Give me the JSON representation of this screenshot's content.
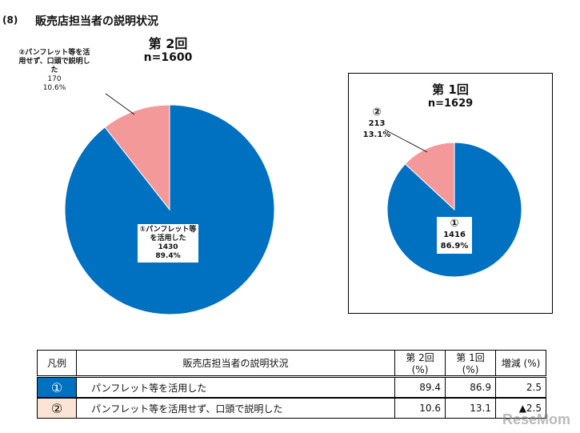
{
  "section": {
    "number": "(8)",
    "title": "販売店担当者の説明状況"
  },
  "colors": {
    "slice1": "#0070C0",
    "slice2": "#F4999A",
    "legend_row1": "#0070C0",
    "legend_row2": "#FBE4D5"
  },
  "chart_data": [
    {
      "type": "pie",
      "title": "第 2回",
      "n_label": "n=1600",
      "slices": [
        {
          "marker": "①",
          "label": "①パンフレット等を活用した",
          "count": "1430",
          "percent": "89.4%",
          "value": 89.4
        },
        {
          "marker": "②",
          "label": "②パンフレット等を活用せず、口頭で説明した",
          "count": "170",
          "percent": "10.6%",
          "value": 10.6
        }
      ]
    },
    {
      "type": "pie",
      "title": "第 1回",
      "n_label": "n=1629",
      "slices": [
        {
          "marker": "①",
          "label": "①",
          "count": "1416",
          "percent": "86.9%",
          "value": 86.9
        },
        {
          "marker": "②",
          "label": "②",
          "count": "213",
          "percent": "13.1%",
          "value": 13.1
        }
      ]
    }
  ],
  "legend_table": {
    "headers": [
      "凡例",
      "販売店担当者の説明状況",
      "第 2回 (%)",
      "第 1回 (%)",
      "増減 (%)"
    ],
    "rows": [
      {
        "mark": "①",
        "description": "パンフレット等を活用した",
        "round2": "89.4",
        "round1": "86.9",
        "change": "2.5"
      },
      {
        "mark": "②",
        "description": "パンフレット等を活用せず、口頭で説明した",
        "round2": "10.6",
        "round1": "13.1",
        "change": "▲2.5"
      }
    ]
  },
  "watermark": "ReseMom"
}
